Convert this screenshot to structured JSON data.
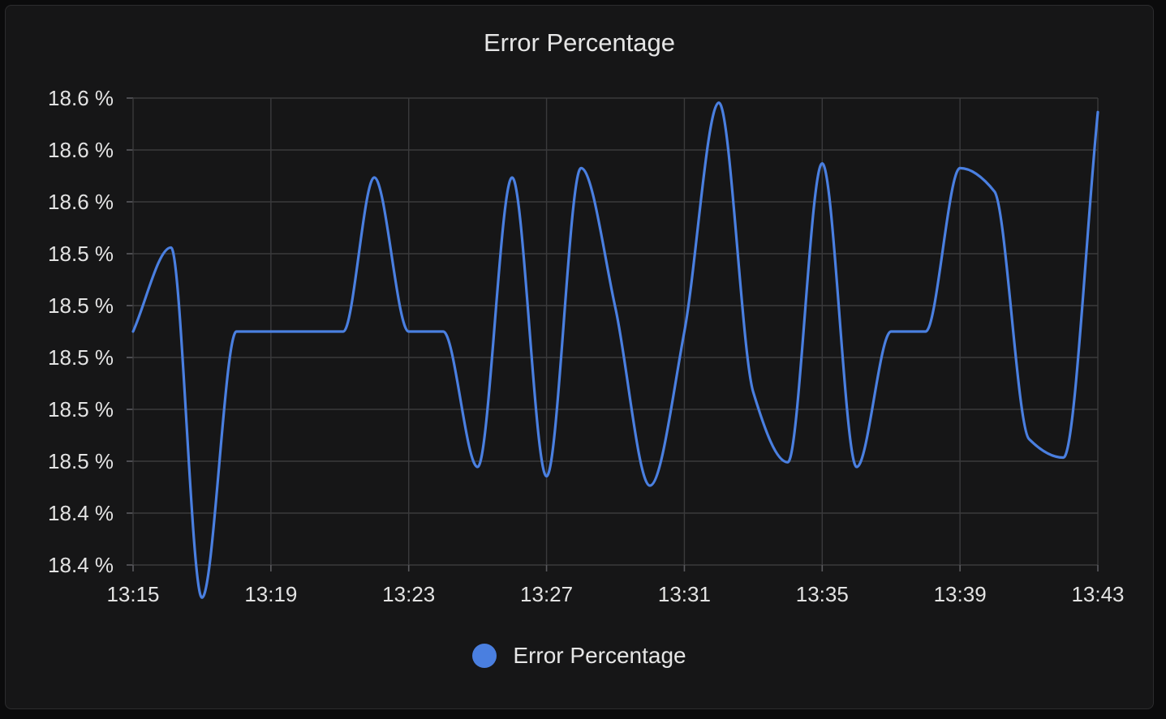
{
  "chart_data": {
    "type": "line",
    "title": "Error Percentage",
    "xlabel": "",
    "ylabel": "",
    "grid": true,
    "legend_position": "bottom",
    "y_tick_labels": [
      "18.6 %",
      "18.6 %",
      "18.6 %",
      "18.5 %",
      "18.5 %",
      "18.5 %",
      "18.5 %",
      "18.5 %",
      "18.4 %",
      "18.4 %"
    ],
    "x_tick_labels": [
      "13:15",
      "13:19",
      "13:23",
      "13:27",
      "13:31",
      "13:35",
      "13:39",
      "13:43"
    ],
    "x_range_minutes": [
      0,
      28
    ],
    "y_range_fraction": [
      0,
      1
    ],
    "series": [
      {
        "name": "Error Percentage",
        "color": "#4a7fe0",
        "points": [
          [
            0,
            0.5
          ],
          [
            1.1,
            0.68
          ],
          [
            2.0,
            -0.07
          ],
          [
            3.0,
            0.5
          ],
          [
            6.1,
            0.5
          ],
          [
            7.0,
            0.83
          ],
          [
            8.0,
            0.5
          ],
          [
            9.0,
            0.5
          ],
          [
            10.0,
            0.21
          ],
          [
            11.0,
            0.83
          ],
          [
            12.0,
            0.19
          ],
          [
            13.0,
            0.85
          ],
          [
            14.0,
            0.55
          ],
          [
            15.0,
            0.17
          ],
          [
            16.0,
            0.5
          ],
          [
            17.0,
            0.99
          ],
          [
            18.0,
            0.37
          ],
          [
            19.0,
            0.22
          ],
          [
            20.0,
            0.86
          ],
          [
            21.0,
            0.21
          ],
          [
            22.0,
            0.5
          ],
          [
            23.0,
            0.5
          ],
          [
            24.0,
            0.85
          ],
          [
            25.0,
            0.8
          ],
          [
            26.0,
            0.27
          ],
          [
            27.0,
            0.23
          ],
          [
            28.0,
            0.97
          ]
        ]
      }
    ]
  }
}
